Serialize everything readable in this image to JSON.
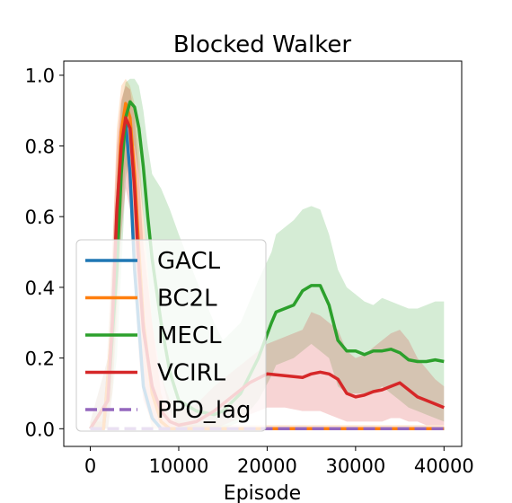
{
  "chart_data": {
    "type": "line",
    "title": "Blocked Walker",
    "xlabel": "Episode",
    "ylabel": "",
    "xlim": [
      -3000,
      42000
    ],
    "ylim": [
      -0.05,
      1.04
    ],
    "x_ticks": [
      0,
      10000,
      20000,
      30000,
      40000
    ],
    "x_tick_labels": [
      "0",
      "10000",
      "20000",
      "30000",
      "40000"
    ],
    "y_ticks": [
      0.0,
      0.2,
      0.4,
      0.6,
      0.8,
      1.0
    ],
    "y_tick_labels": [
      "0.0",
      "0.2",
      "0.4",
      "0.6",
      "0.8",
      "1.0"
    ],
    "grid": false,
    "legend_position": "lower-left",
    "series": [
      {
        "name": "GACL",
        "color": "#1f77b4",
        "dash": false,
        "x": [
          0,
          1500,
          2500,
          3000,
          3500,
          4000,
          4500,
          5000,
          6000,
          7000,
          8000,
          9000,
          10000,
          12000,
          14000,
          20000,
          25000,
          30000,
          35000,
          40000
        ],
        "y": [
          0.0,
          0.0,
          0.3,
          0.6,
          0.82,
          0.87,
          0.72,
          0.45,
          0.12,
          0.03,
          0.0,
          0.0,
          0.0,
          0.0,
          0.0,
          0.0,
          0.0,
          0.0,
          0.0,
          0.0
        ]
      },
      {
        "name": "BC2L",
        "color": "#ff7f0e",
        "dash": false,
        "x": [
          0,
          1500,
          2500,
          3000,
          3500,
          4000,
          4500,
          5000,
          5500,
          6000,
          7000,
          8000,
          9000,
          10000,
          12000,
          14000,
          20000,
          25000,
          30000,
          35000,
          40000
        ],
        "y": [
          0.0,
          0.0,
          0.3,
          0.6,
          0.84,
          0.92,
          0.88,
          0.72,
          0.5,
          0.3,
          0.1,
          0.02,
          0.0,
          0.0,
          0.0,
          0.0,
          0.0,
          0.0,
          0.0,
          0.0,
          0.0
        ],
        "band_lower": [
          0.0,
          0.0,
          0.1,
          0.3,
          0.6,
          0.75,
          0.65,
          0.45,
          0.25,
          0.1,
          0.0,
          0.0,
          0.0,
          0.0,
          0.0,
          0.0,
          0.0,
          0.0,
          0.0,
          0.0,
          0.0
        ],
        "band_upper": [
          0.02,
          0.02,
          0.5,
          0.85,
          0.97,
          0.99,
          0.97,
          0.92,
          0.8,
          0.6,
          0.3,
          0.1,
          0.03,
          0.02,
          0.01,
          0.01,
          0.01,
          0.01,
          0.01,
          0.01,
          0.01
        ]
      },
      {
        "name": "MECL",
        "color": "#2ca02c",
        "dash": false,
        "x": [
          0,
          2000,
          3000,
          3500,
          4000,
          4500,
          5000,
          5500,
          6000,
          6500,
          7000,
          8000,
          9000,
          10000,
          12000,
          14000,
          15000,
          17000,
          19000,
          20500,
          21000,
          23000,
          24000,
          25000,
          26000,
          27000,
          28000,
          29000,
          30000,
          31000,
          32000,
          33000,
          34000,
          35000,
          36000,
          37000,
          38000,
          39000,
          40000
        ],
        "y": [
          0.0,
          0.08,
          0.45,
          0.72,
          0.88,
          0.925,
          0.91,
          0.85,
          0.74,
          0.6,
          0.48,
          0.3,
          0.16,
          0.08,
          0.05,
          0.04,
          0.05,
          0.1,
          0.2,
          0.3,
          0.33,
          0.35,
          0.39,
          0.405,
          0.405,
          0.35,
          0.25,
          0.22,
          0.22,
          0.21,
          0.22,
          0.22,
          0.225,
          0.215,
          0.195,
          0.19,
          0.19,
          0.195,
          0.19
        ],
        "band_lower": [
          0.0,
          0.0,
          0.2,
          0.45,
          0.7,
          0.8,
          0.8,
          0.72,
          0.6,
          0.45,
          0.3,
          0.15,
          0.05,
          0.0,
          0.0,
          0.0,
          0.0,
          0.02,
          0.08,
          0.15,
          0.18,
          0.2,
          0.22,
          0.24,
          0.22,
          0.2,
          0.12,
          0.1,
          0.1,
          0.1,
          0.1,
          0.12,
          0.1,
          0.08,
          0.06,
          0.05,
          0.04,
          0.03,
          0.02
        ],
        "band_upper": [
          0.02,
          0.2,
          0.7,
          0.92,
          0.98,
          0.99,
          0.99,
          0.97,
          0.9,
          0.8,
          0.72,
          0.68,
          0.62,
          0.55,
          0.42,
          0.3,
          0.25,
          0.3,
          0.42,
          0.5,
          0.55,
          0.59,
          0.62,
          0.63,
          0.62,
          0.55,
          0.45,
          0.4,
          0.38,
          0.36,
          0.35,
          0.37,
          0.36,
          0.35,
          0.34,
          0.34,
          0.35,
          0.36,
          0.36
        ]
      },
      {
        "name": "VCIRL",
        "color": "#d62728",
        "dash": false,
        "x": [
          0,
          2000,
          2500,
          3000,
          3500,
          4000,
          4500,
          5000,
          5500,
          6000,
          7000,
          8000,
          9000,
          10000,
          12000,
          14000,
          16000,
          18000,
          20000,
          22000,
          24000,
          25000,
          26000,
          27000,
          28000,
          29000,
          30000,
          31000,
          32000,
          33000,
          34000,
          35000,
          36000,
          37000,
          38000,
          39000,
          40000
        ],
        "y": [
          0.0,
          0.08,
          0.3,
          0.62,
          0.8,
          0.88,
          0.85,
          0.68,
          0.45,
          0.28,
          0.12,
          0.05,
          0.02,
          0.01,
          0.02,
          0.05,
          0.09,
          0.13,
          0.155,
          0.15,
          0.145,
          0.155,
          0.16,
          0.155,
          0.14,
          0.1,
          0.09,
          0.095,
          0.105,
          0.11,
          0.12,
          0.13,
          0.11,
          0.09,
          0.08,
          0.07,
          0.06
        ],
        "band_lower": [
          0.0,
          0.0,
          0.1,
          0.35,
          0.55,
          0.68,
          0.62,
          0.4,
          0.2,
          0.08,
          0.02,
          0.0,
          0.0,
          0.0,
          0.0,
          0.0,
          0.02,
          0.04,
          0.06,
          0.06,
          0.05,
          0.05,
          0.05,
          0.04,
          0.03,
          0.02,
          0.02,
          0.02,
          0.02,
          0.02,
          0.03,
          0.03,
          0.02,
          0.02,
          0.01,
          0.01,
          0.01
        ],
        "band_upper": [
          0.02,
          0.2,
          0.5,
          0.8,
          0.93,
          0.97,
          0.96,
          0.88,
          0.72,
          0.52,
          0.3,
          0.15,
          0.08,
          0.05,
          0.07,
          0.12,
          0.16,
          0.2,
          0.24,
          0.26,
          0.28,
          0.33,
          0.32,
          0.3,
          0.28,
          0.22,
          0.2,
          0.21,
          0.23,
          0.25,
          0.27,
          0.28,
          0.25,
          0.2,
          0.17,
          0.14,
          0.12
        ]
      },
      {
        "name": "PPO_lag",
        "color": "#9467bd",
        "dash": true,
        "x": [
          0,
          40000
        ],
        "y": [
          0.0,
          0.0
        ]
      }
    ]
  }
}
